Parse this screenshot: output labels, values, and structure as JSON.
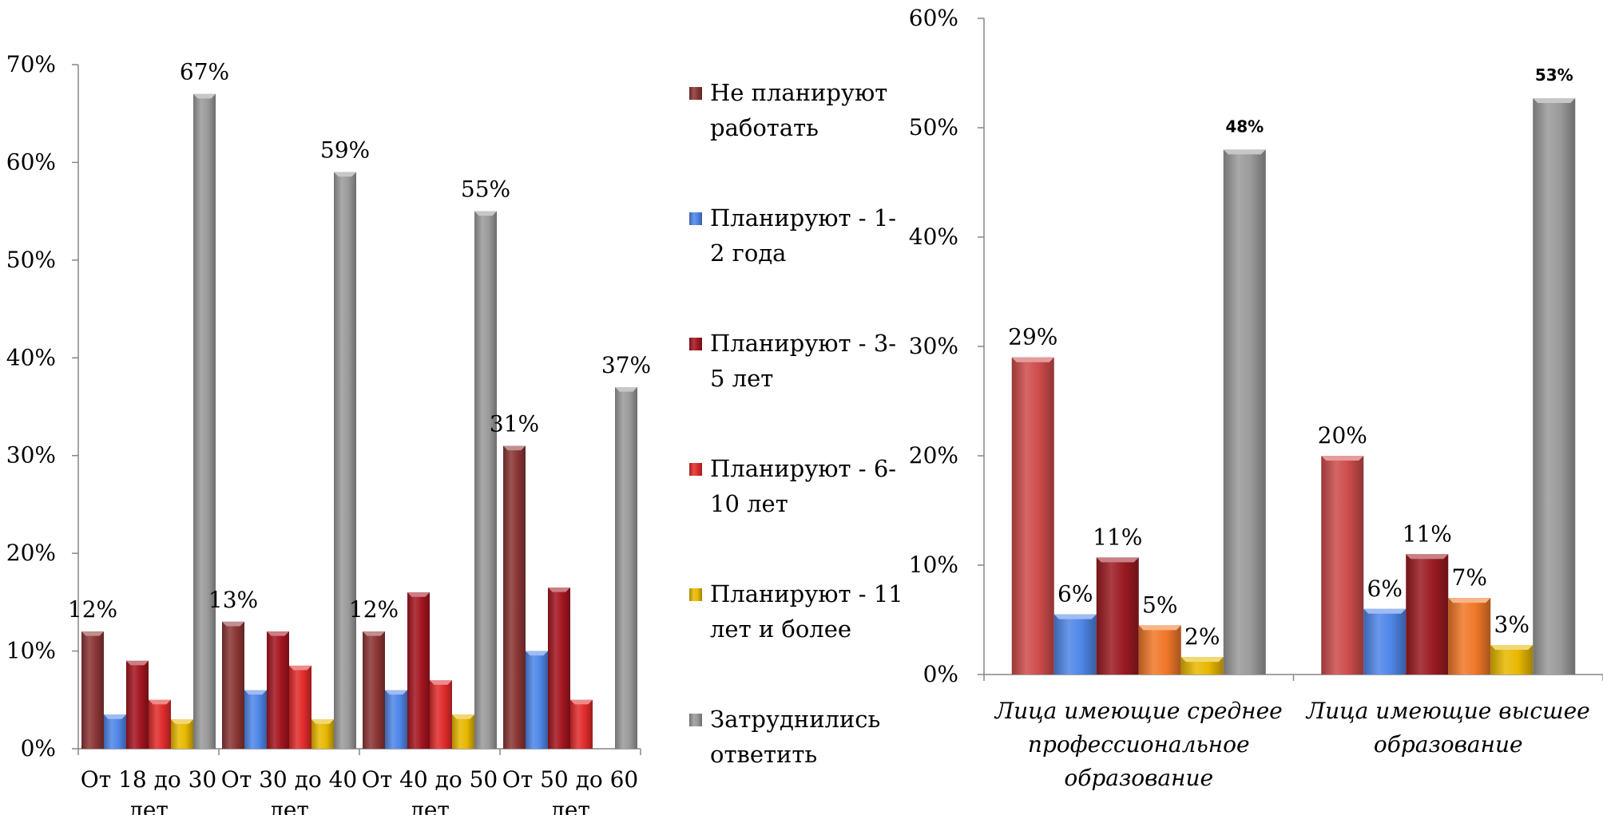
{
  "chart_data": [
    {
      "type": "bar",
      "categories": [
        [
          "От 18 до 30",
          "лет"
        ],
        [
          "От 30 до 40",
          "лет"
        ],
        [
          "От 40 до 50",
          "лет"
        ],
        [
          "От 50 до 60",
          "лет"
        ]
      ],
      "ylim": [
        0,
        70
      ],
      "yticks": [
        "0%",
        "10%",
        "20%",
        "30%",
        "40%",
        "50%",
        "60%",
        "70%"
      ],
      "grid": false,
      "legend_position": "right",
      "series": [
        {
          "name": [
            "Не планируют",
            "работать"
          ],
          "color": "#8b3535",
          "values": [
            12,
            13,
            12,
            31
          ]
        },
        {
          "name": [
            "Планируют - 1-",
            "2 года"
          ],
          "color": "#4f86e8",
          "values": [
            3.5,
            6,
            6,
            10
          ]
        },
        {
          "name": [
            "Планируют - 3-",
            "5 лет"
          ],
          "color": "#a31520",
          "values": [
            9,
            12,
            16,
            16.5
          ]
        },
        {
          "name": [
            "Планируют - 6-",
            "10 лет"
          ],
          "color": "#e02b2b",
          "values": [
            5,
            8.5,
            7,
            5
          ]
        },
        {
          "name": [
            "Планируют - 11",
            "лет и более"
          ],
          "color": "#e8b800",
          "values": [
            3,
            3,
            3.5,
            0
          ]
        },
        {
          "name": [
            "Затруднились",
            "ответить"
          ],
          "color": "#9a9a9a",
          "values": [
            67,
            59,
            55,
            37
          ]
        }
      ],
      "data_labels": [
        {
          "category": 0,
          "series": 0,
          "text": "12%"
        },
        {
          "category": 0,
          "series": 5,
          "text": "67%"
        },
        {
          "category": 1,
          "series": 0,
          "text": "13%"
        },
        {
          "category": 1,
          "series": 5,
          "text": "59%"
        },
        {
          "category": 2,
          "series": 0,
          "text": "12%"
        },
        {
          "category": 2,
          "series": 5,
          "text": "55%"
        },
        {
          "category": 3,
          "series": 0,
          "text": "31%"
        },
        {
          "category": 3,
          "series": 5,
          "text": "37%"
        }
      ]
    },
    {
      "type": "bar",
      "categories": [
        [
          "Лица имеющие среднее",
          "профессиональное",
          "образование"
        ],
        [
          "Лица имеющие высшее",
          "образование"
        ]
      ],
      "ylim": [
        0,
        60
      ],
      "yticks": [
        "0%",
        "10%",
        "20%",
        "30%",
        "40%",
        "50%",
        "60%"
      ],
      "grid": false,
      "series": [
        {
          "color": "#cd4b4b",
          "values": [
            29,
            20
          ],
          "labels": [
            "29%",
            "20%"
          ]
        },
        {
          "color": "#4f86e8",
          "values": [
            5.5,
            6
          ],
          "labels": [
            "6%",
            "6%"
          ]
        },
        {
          "color": "#9b1a22",
          "values": [
            10.7,
            11
          ],
          "labels": [
            "11%",
            "11%"
          ]
        },
        {
          "color": "#f07828",
          "values": [
            4.5,
            7
          ],
          "labels": [
            "5%",
            "7%"
          ]
        },
        {
          "color": "#e8b800",
          "values": [
            1.6,
            2.7
          ],
          "labels": [
            "2%",
            "3%"
          ]
        },
        {
          "color": "#9a9a9a",
          "values": [
            48,
            52.7
          ],
          "labels": [
            "48%",
            "53%"
          ]
        }
      ]
    }
  ]
}
